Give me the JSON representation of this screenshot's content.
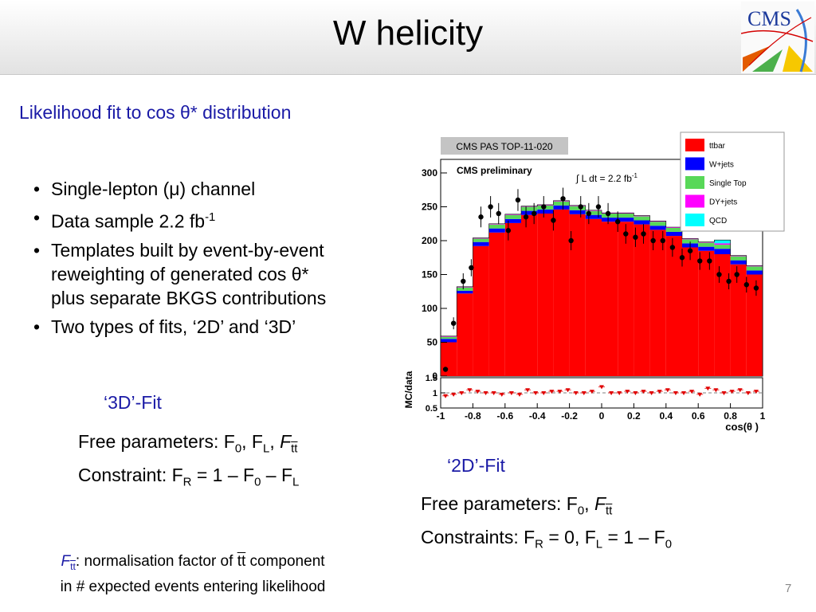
{
  "slide": {
    "title": "W helicity",
    "subtitle": "Likelihood fit to cos θ* distribution",
    "page_number": "7",
    "logo_text": "CMS"
  },
  "bullets": [
    {
      "text": "Single-lepton (μ) channel"
    },
    {
      "text": "Data sample 2.2 fb",
      "sup": "-1"
    },
    {
      "lines": [
        "Templates built by event-by-event",
        "reweighting of generated cos θ*",
        "plus separate BKGS contributions"
      ]
    },
    {
      "text": "Two types of fits, ‘2D’ and ‘3D’"
    }
  ],
  "fit3d": {
    "title": "‘3D’-Fit",
    "line1_prefix": "Free parameters: F",
    "sub0": "0",
    "comma": ", F",
    "subL": "L",
    "comma2": ", ",
    "F": "F",
    "subtt": "tt",
    "line2_prefix": "Constraint: F",
    "subR": "R",
    "line2_mid": " = 1 – F",
    "line2_end": " – F"
  },
  "fit2d": {
    "title": "‘2D’-Fit",
    "line1_prefix": "Free parameters: F",
    "sub0": "0",
    "comma": ", ",
    "F": "F",
    "subtt": "tt",
    "line2_prefix": "Constraints: F",
    "subR": "R",
    "line2_mid": " = 0, F",
    "subL": "L",
    "line2_end": " = 1 – F"
  },
  "note": {
    "F": "F",
    "subtt": "tt",
    "text1": ": normalisation factor of ",
    "tt": "tt",
    "text2": " component",
    "line2": "in # expected events entering likelihood"
  },
  "chart_data": {
    "type": "bar",
    "stacked": true,
    "header_label": "CMS PAS TOP-11-020",
    "plot_label": "CMS preliminary",
    "lumi_label": "∫ L dt = 2.2 fb",
    "lumi_sup": "-1",
    "xlabel": "cos(θ )",
    "ylabel_ratio": "MC/data",
    "xlim": [
      -1,
      1
    ],
    "ylim": [
      0,
      320
    ],
    "ratio_ylim": [
      0.5,
      1.5
    ],
    "x_ticks": [
      "-1",
      "-0.8",
      "-0.6",
      "-0.4",
      "-0.2",
      "0",
      "0.2",
      "0.4",
      "0.6",
      "0.8",
      "1"
    ],
    "y_ticks": [
      "0",
      "50",
      "100",
      "150",
      "200",
      "250",
      "300"
    ],
    "ratio_ticks": [
      "0.5",
      "1",
      "1.5"
    ],
    "bin_edges": [
      -1.0,
      -0.9,
      -0.8,
      -0.7,
      -0.6,
      -0.5,
      -0.4,
      -0.3,
      -0.2,
      -0.1,
      0.0,
      0.1,
      0.2,
      0.3,
      0.4,
      0.5,
      0.6,
      0.7,
      0.8,
      0.9,
      1.0
    ],
    "series": [
      {
        "name": "ttbar",
        "color": "#ff0000",
        "values": [
          50,
          122,
          192,
          212,
          226,
          238,
          240,
          246,
          239,
          232,
          228,
          228,
          224,
          216,
          207,
          190,
          185,
          180,
          165,
          150
        ]
      },
      {
        "name": "W+jets",
        "color": "#0000ff",
        "values": [
          5,
          4,
          6,
          6,
          6,
          6,
          6,
          6,
          6,
          6,
          6,
          6,
          6,
          6,
          6,
          6,
          6,
          8,
          6,
          6
        ]
      },
      {
        "name": "Single Top",
        "color": "#58d858",
        "values": [
          3,
          5,
          5,
          6,
          6,
          6,
          6,
          6,
          6,
          6,
          6,
          6,
          6,
          6,
          6,
          6,
          6,
          6,
          6,
          6
        ]
      },
      {
        "name": "DY+jets",
        "color": "#ff00ff",
        "values": [
          1,
          1,
          1,
          1,
          1,
          1,
          1,
          1,
          1,
          1,
          1,
          1,
          1,
          1,
          1,
          1,
          1,
          2,
          1,
          1
        ]
      },
      {
        "name": "QCD",
        "color": "#00ffff",
        "values": [
          0,
          0,
          0,
          0,
          0,
          0,
          0,
          0,
          0,
          0,
          0,
          0,
          0,
          0,
          0,
          0,
          0,
          5,
          0,
          0
        ]
      }
    ],
    "data_points": {
      "x": [
        -0.97,
        -0.92,
        -0.86,
        -0.81,
        -0.75,
        -0.69,
        -0.64,
        -0.58,
        -0.52,
        -0.47,
        -0.42,
        -0.36,
        -0.3,
        -0.24,
        -0.19,
        -0.13,
        -0.08,
        -0.02,
        0.04,
        0.1,
        0.15,
        0.21,
        0.26,
        0.32,
        0.38,
        0.44,
        0.5,
        0.55,
        0.61,
        0.67,
        0.73,
        0.79,
        0.84,
        0.9,
        0.96
      ],
      "y": [
        10,
        78,
        140,
        160,
        235,
        250,
        240,
        215,
        260,
        235,
        240,
        250,
        230,
        262,
        200,
        250,
        240,
        250,
        240,
        228,
        210,
        205,
        210,
        200,
        200,
        190,
        175,
        185,
        170,
        170,
        150,
        140,
        150,
        135,
        130
      ]
    },
    "ratio_points": {
      "x": [
        -0.97,
        -0.92,
        -0.87,
        -0.82,
        -0.77,
        -0.72,
        -0.67,
        -0.62,
        -0.56,
        -0.51,
        -0.46,
        -0.41,
        -0.36,
        -0.31,
        -0.26,
        -0.21,
        -0.16,
        -0.11,
        -0.06,
        0.0,
        0.06,
        0.11,
        0.16,
        0.21,
        0.26,
        0.31,
        0.36,
        0.41,
        0.46,
        0.51,
        0.56,
        0.61,
        0.66,
        0.71,
        0.76,
        0.81,
        0.86,
        0.91,
        0.96
      ],
      "y": [
        0.9,
        0.95,
        1.0,
        1.1,
        1.05,
        1.0,
        1.0,
        0.95,
        1.0,
        0.95,
        1.1,
        1.0,
        1.0,
        1.05,
        1.05,
        1.1,
        1.0,
        1.0,
        1.05,
        1.2,
        1.0,
        1.0,
        1.05,
        1.0,
        1.05,
        1.0,
        1.05,
        1.1,
        1.0,
        1.0,
        1.05,
        0.95,
        1.15,
        1.1,
        1.0,
        1.05,
        1.1,
        1.0,
        1.05
      ]
    },
    "legend_position": "top-right"
  }
}
